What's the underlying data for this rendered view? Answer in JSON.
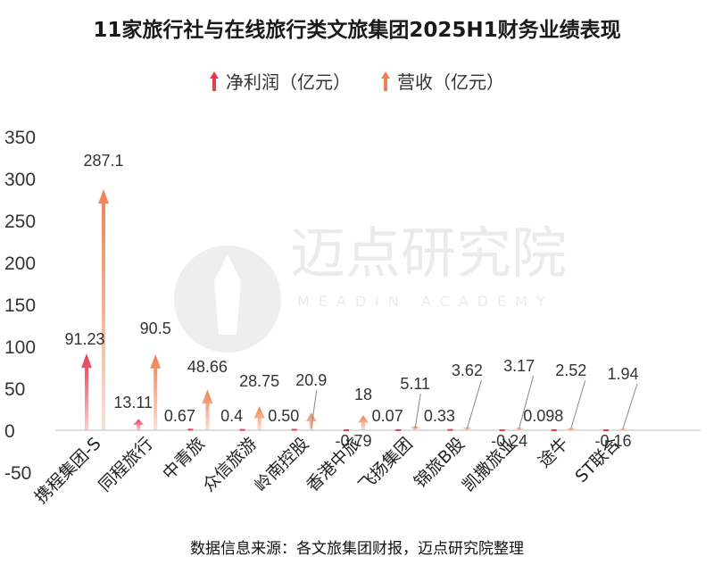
{
  "title": "11家旅行社与在线旅行类文旅集团2025H1财务业绩表现",
  "legend": {
    "profit_label": "净利润（亿元）",
    "revenue_label": "营收（亿元）"
  },
  "source": "数据信息来源：各文旅集团财报，迈点研究院整理",
  "watermark": {
    "text_cn": "迈点研究院",
    "text_en": "MEADIN ACADEMY"
  },
  "colors": {
    "profit": "#e8394f",
    "revenue": "#ef8255",
    "axis": "#555555"
  },
  "chart_data": {
    "type": "bar",
    "ylim": [
      -50,
      350
    ],
    "yticks": [
      -50,
      0,
      50,
      100,
      150,
      200,
      250,
      300,
      350
    ],
    "categories": [
      "携程集团-S",
      "同程旅行",
      "中青旅",
      "众信旅游",
      "岭南控股",
      "香港中旅",
      "飞扬集团",
      "锦旅B股",
      "凯撒旅业",
      "途牛",
      "ST联合"
    ],
    "series": [
      {
        "name": "净利润（亿元）",
        "values": [
          91.23,
          13.11,
          0.67,
          0.4,
          0.5,
          -0.79,
          0.07,
          0.33,
          -0.24,
          0.098,
          -0.16
        ],
        "labels": [
          "91.23",
          "13.11",
          "0.67",
          "0.4",
          "0.50",
          "-0.79",
          "0.07",
          "0.33",
          "-0.24",
          "0.098",
          "-0.16"
        ]
      },
      {
        "name": "营收（亿元）",
        "values": [
          287.1,
          90.5,
          48.66,
          28.75,
          20.9,
          18,
          5.11,
          3.62,
          3.17,
          2.52,
          1.94
        ],
        "labels": [
          "287.1",
          "90.5",
          "48.66",
          "28.75",
          "20.9",
          "18",
          "5.11",
          "3.62",
          "3.17",
          "2.52",
          "1.94"
        ]
      }
    ]
  }
}
